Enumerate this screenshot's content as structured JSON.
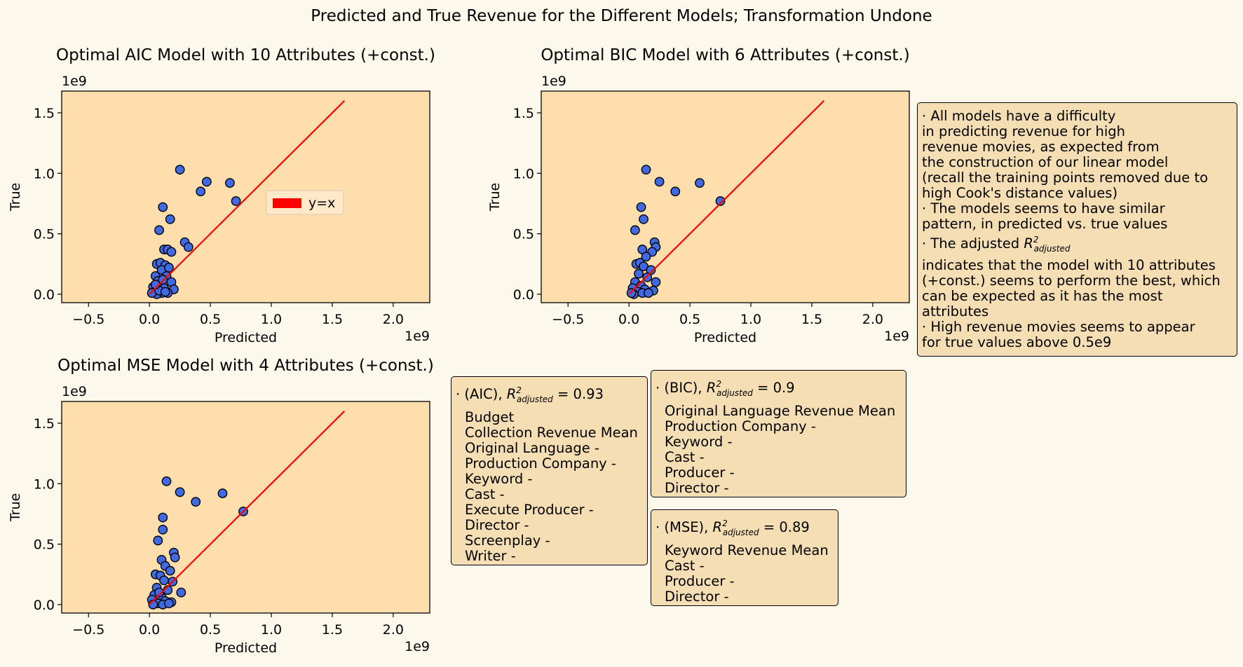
{
  "figure": {
    "title": "Predicted and True Revenue for the Different Models; Transformation Undone"
  },
  "chart_data": [
    {
      "type": "scatter",
      "title": "Optimal AIC Model with 10 Attributes (+const.)",
      "xlabel": "Predicted",
      "ylabel": "True",
      "x_offset_label": "1e9",
      "y_offset_label": "1e9",
      "xlim": [
        -0.72,
        2.3
      ],
      "ylim": [
        -0.07,
        1.68
      ],
      "xticks": [
        -0.5,
        0.0,
        0.5,
        1.0,
        1.5,
        2.0
      ],
      "xtick_labels": [
        "−0.5",
        "0.0",
        "0.5",
        "1.0",
        "1.5",
        "2.0"
      ],
      "yticks": [
        0.0,
        0.5,
        1.0,
        1.5
      ],
      "ytick_labels": [
        "0.0",
        "0.5",
        "1.0",
        "1.5"
      ],
      "grid": false,
      "legend": {
        "placement": "center-right",
        "entries": [
          "y=x"
        ]
      },
      "series": [
        {
          "name": "",
          "color": "#4169e1",
          "points": [
            [
              0.25,
              1.03
            ],
            [
              0.47,
              0.93
            ],
            [
              0.66,
              0.92
            ],
            [
              0.42,
              0.85
            ],
            [
              0.71,
              0.77
            ],
            [
              0.11,
              0.72
            ],
            [
              0.17,
              0.62
            ],
            [
              0.08,
              0.53
            ],
            [
              0.29,
              0.43
            ],
            [
              0.32,
              0.39
            ],
            [
              0.12,
              0.37
            ],
            [
              0.15,
              0.37
            ],
            [
              0.18,
              0.35
            ],
            [
              0.06,
              0.25
            ],
            [
              0.09,
              0.26
            ],
            [
              0.13,
              0.24
            ],
            [
              0.1,
              0.2
            ],
            [
              0.05,
              0.15
            ],
            [
              0.14,
              0.15
            ],
            [
              0.07,
              0.11
            ],
            [
              0.18,
              0.1
            ],
            [
              0.03,
              0.06
            ],
            [
              0.09,
              0.06
            ],
            [
              0.12,
              0.05
            ],
            [
              0.2,
              0.04
            ],
            [
              0.04,
              0.02
            ],
            [
              0.1,
              0.01
            ],
            [
              0.15,
              0.01
            ],
            [
              0.06,
              0.0
            ],
            [
              0.02,
              0.01
            ],
            [
              0.08,
              0.03
            ],
            [
              0.11,
              0.12
            ],
            [
              0.16,
              0.22
            ],
            [
              0.05,
              0.08
            ],
            [
              0.13,
              0.02
            ]
          ]
        },
        {
          "name": "y=x",
          "type": "line",
          "color": "#ff0000",
          "x": [
            0.0,
            1.6
          ],
          "y": [
            0.0,
            1.6
          ]
        }
      ]
    },
    {
      "type": "scatter",
      "title": "Optimal BIC Model with 6 Attributes (+const.)",
      "xlabel": "Predicted",
      "ylabel": "True",
      "x_offset_label": "1e9",
      "y_offset_label": "1e9",
      "xlim": [
        -0.72,
        2.3
      ],
      "ylim": [
        -0.07,
        1.68
      ],
      "xticks": [
        -0.5,
        0.0,
        0.5,
        1.0,
        1.5,
        2.0
      ],
      "xtick_labels": [
        "−0.5",
        "0.0",
        "0.5",
        "1.0",
        "1.5",
        "2.0"
      ],
      "yticks": [
        0.0,
        0.5,
        1.0,
        1.5
      ],
      "ytick_labels": [
        "0.0",
        "0.5",
        "1.0",
        "1.5"
      ],
      "grid": false,
      "series": [
        {
          "name": "",
          "color": "#4169e1",
          "points": [
            [
              0.14,
              1.03
            ],
            [
              0.25,
              0.93
            ],
            [
              0.38,
              0.85
            ],
            [
              0.58,
              0.92
            ],
            [
              0.75,
              0.77
            ],
            [
              0.1,
              0.72
            ],
            [
              0.12,
              0.62
            ],
            [
              0.05,
              0.53
            ],
            [
              0.21,
              0.43
            ],
            [
              0.22,
              0.39
            ],
            [
              0.11,
              0.37
            ],
            [
              0.19,
              0.35
            ],
            [
              0.14,
              0.31
            ],
            [
              0.06,
              0.25
            ],
            [
              0.09,
              0.26
            ],
            [
              0.12,
              0.23
            ],
            [
              0.18,
              0.2
            ],
            [
              0.08,
              0.17
            ],
            [
              0.15,
              0.14
            ],
            [
              0.22,
              0.1
            ],
            [
              0.05,
              0.1
            ],
            [
              0.1,
              0.07
            ],
            [
              0.03,
              0.05
            ],
            [
              0.13,
              0.04
            ],
            [
              0.2,
              0.03
            ],
            [
              0.07,
              0.02
            ],
            [
              0.11,
              0.01
            ],
            [
              0.04,
              0.0
            ],
            [
              0.16,
              0.01
            ],
            [
              0.02,
              0.01
            ]
          ]
        },
        {
          "name": "y=x",
          "type": "line",
          "color": "#ff0000",
          "x": [
            0.0,
            1.6
          ],
          "y": [
            0.0,
            1.6
          ]
        }
      ]
    },
    {
      "type": "scatter",
      "title": "Optimal MSE Model with 4 Attributes (+const.)",
      "xlabel": "Predicted",
      "ylabel": "True",
      "x_offset_label": "1e9",
      "y_offset_label": "1e9",
      "xlim": [
        -0.72,
        2.3
      ],
      "ylim": [
        -0.07,
        1.68
      ],
      "xticks": [
        -0.5,
        0.0,
        0.5,
        1.0,
        1.5,
        2.0
      ],
      "xtick_labels": [
        "−0.5",
        "0.0",
        "0.5",
        "1.0",
        "1.5",
        "2.0"
      ],
      "yticks": [
        0.0,
        0.5,
        1.0,
        1.5
      ],
      "ytick_labels": [
        "0.0",
        "0.5",
        "1.0",
        "1.5"
      ],
      "grid": false,
      "series": [
        {
          "name": "",
          "color": "#4169e1",
          "points": [
            [
              0.14,
              1.02
            ],
            [
              0.25,
              0.93
            ],
            [
              0.38,
              0.85
            ],
            [
              0.6,
              0.92
            ],
            [
              0.77,
              0.77
            ],
            [
              0.11,
              0.72
            ],
            [
              0.11,
              0.62
            ],
            [
              0.07,
              0.53
            ],
            [
              0.2,
              0.43
            ],
            [
              0.21,
              0.39
            ],
            [
              0.1,
              0.37
            ],
            [
              0.13,
              0.32
            ],
            [
              0.17,
              0.28
            ],
            [
              0.05,
              0.25
            ],
            [
              0.09,
              0.24
            ],
            [
              0.12,
              0.2
            ],
            [
              0.19,
              0.19
            ],
            [
              0.26,
              0.1
            ],
            [
              0.06,
              0.14
            ],
            [
              0.15,
              0.12
            ],
            [
              0.04,
              0.08
            ],
            [
              0.1,
              0.06
            ],
            [
              0.02,
              0.04
            ],
            [
              0.13,
              0.03
            ],
            [
              0.18,
              0.02
            ],
            [
              0.07,
              0.01
            ],
            [
              0.11,
              0.0
            ],
            [
              0.03,
              0.0
            ],
            [
              0.16,
              0.01
            ],
            [
              0.08,
              0.1
            ]
          ]
        },
        {
          "name": "y=x",
          "type": "line",
          "color": "#ff0000",
          "x": [
            0.0,
            1.6
          ],
          "y": [
            0.0,
            1.6
          ]
        }
      ]
    }
  ],
  "notes": {
    "summary": {
      "l1": "·  All models have a difficulty",
      "l2": "in predicting revenue for high",
      "l3": "revenue movies, as expected from",
      "l4": "the construction of our linear model",
      "l5": "(recall the training points removed due to",
      "l6": "high Cook's distance values)",
      "l7": "· The models seems to have similar",
      "l8": "pattern, in predicted vs. true values",
      "l9_prefix": "· The adjusted ",
      "r_sym": "R",
      "r_sup": "2",
      "r_sub": "adjusted",
      "l10": "indicates that the model with 10 attributes",
      "l11": "(+const.) seems to perform the best, which",
      "l12": "can be expected as it has the most",
      "l13": "attributes",
      "l14": "· High revenue movies seems to appear",
      "l15": "for true values above 0.5e9"
    },
    "aic": {
      "prefix": "· (AIC), ",
      "r_sym": "R",
      "r_sup": "2",
      "r_sub": "adjusted",
      "value": " = 0.93",
      "items": [
        "Budget",
        "Collection Revenue Mean",
        "Original Language -",
        "Production Company -",
        "Keyword -",
        "Cast -",
        "Execute Producer -",
        "Director -",
        "Screenplay -",
        "Writer -"
      ]
    },
    "bic": {
      "prefix": "· (BIC), ",
      "r_sym": "R",
      "r_sup": "2",
      "r_sub": "adjusted",
      "value": " = 0.9",
      "items": [
        "Original Language Revenue Mean",
        "Production Company -",
        "Keyword -",
        "Cast -",
        "Producer -",
        "Director -"
      ]
    },
    "mse": {
      "prefix": "· (MSE), ",
      "r_sym": "R",
      "r_sup": "2",
      "r_sub": "adjusted",
      "value": " = 0.89",
      "items": [
        "Keyword Revenue Mean",
        "Cast -",
        "Producer -",
        "Director -"
      ]
    }
  }
}
